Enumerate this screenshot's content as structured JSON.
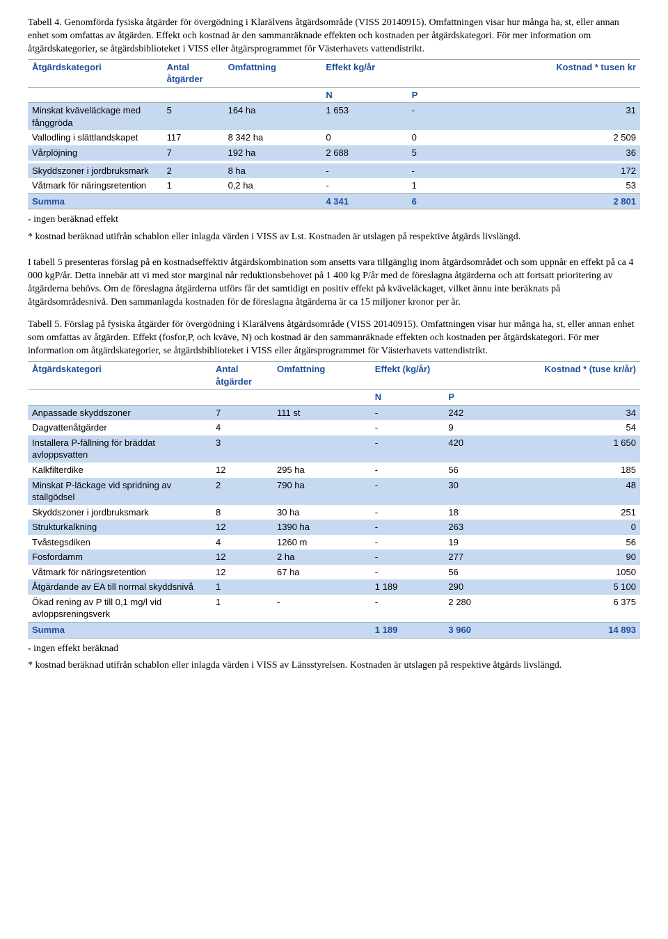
{
  "table4": {
    "caption": "Tabell 4. Genomförda fysiska åtgärder för övergödning i Klarälvens åtgärdsområde (VISS 20140915). Omfattningen visar hur många ha, st, eller annan enhet som omfattas av åtgärden. Effekt och kostnad är den sammanräknade effekten och kostnaden per åtgärdskategori. För mer information om åtgärdskategorier, se åtgärdsbiblioteket i VISS eller åtgärsprogrammet för Västerhavets vattendistrikt.",
    "headers": {
      "cat": "Åtgärdskategori",
      "antal": "Antal åtgärder",
      "omf": "Omfattning",
      "effekt": "Effekt kg/år",
      "n": "N",
      "p": "P",
      "kost": "Kostnad * tusen kr"
    },
    "rows": [
      {
        "cat": "Minskat kväveläckage med fånggröda",
        "antal": "5",
        "omf": "164 ha",
        "n": "1 653",
        "p": "-",
        "kost": "31",
        "blue": true
      },
      {
        "cat": "Vallodling i slättlandskapet",
        "antal": "117",
        "omf": "8 342 ha",
        "n": "0",
        "p": "0",
        "kost": "2 509",
        "blue": false
      },
      {
        "cat": "Vårplöjning",
        "antal": "7",
        "omf": "192 ha",
        "n": "2 688",
        "p": "5",
        "kost": "36",
        "blue": true
      },
      {
        "cat": "",
        "antal": "",
        "omf": "",
        "n": "",
        "p": "",
        "kost": "",
        "blue": false
      },
      {
        "cat": "Skyddszoner i jordbruksmark",
        "antal": "2",
        "omf": "8 ha",
        "n": "-",
        "p": "-",
        "kost": "172",
        "blue": true
      },
      {
        "cat": "Våtmark för näringsretention",
        "antal": "1",
        "omf": "0,2 ha",
        "n": "-",
        "p": "1",
        "kost": "53",
        "blue": false
      }
    ],
    "sum": {
      "label": "Summa",
      "n": "4 341",
      "p": "6",
      "kost": "2 801"
    },
    "notes": [
      "- ingen beräknad effekt",
      "* kostnad beräknad utifrån schablon eller inlagda värden i VISS av Lst. Kostnaden är utslagen på respektive åtgärds livslängd."
    ]
  },
  "midpara": "I tabell 5 presenteras förslag på en kostnadseffektiv åtgärdskombination som ansetts vara tillgänglig inom åtgärdsområdet och som uppnår en effekt på ca 4 000 kgP/år. Detta innebär att vi med stor marginal når reduktionsbehovet på 1 400 kg P/år med de föreslagna åtgärderna och att fortsatt prioritering av åtgärderna behövs. Om de föreslagna åtgärderna utförs får det samtidigt en positiv effekt på kväveläckaget, vilket ännu inte beräknats på åtgärdsområdesnivå. Den sammanlagda kostnaden för de föreslagna åtgärderna är ca 15 miljoner kronor per år.",
  "table5": {
    "caption": "Tabell 5. Förslag på fysiska åtgärder för övergödning i Klarälvens åtgärdsområde (VISS 20140915). Omfattningen visar hur många ha, st, eller annan enhet som omfattas av åtgärden. Effekt (fosfor,P, och kväve, N) och kostnad är den sammanräknade effekten och kostnaden per åtgärdskategori. För mer information om åtgärdskategorier, se åtgärdsbiblioteket i VISS eller åtgärsprogrammet för Västerhavets vattendistrikt.",
    "headers": {
      "cat": "Åtgärdskategori",
      "antal": "Antal åtgärder",
      "omf": "Omfattning",
      "effekt": "Effekt (kg/år)",
      "n": "N",
      "p": "P",
      "kost": "Kostnad * (tuse kr/år)"
    },
    "rows": [
      {
        "cat": "Anpassade skyddszoner",
        "antal": "7",
        "omf": "111 st",
        "n": "-",
        "p": "242",
        "kost": "34",
        "blue": true
      },
      {
        "cat": "Dagvattenåtgärder",
        "antal": "4",
        "omf": "",
        "n": "-",
        "p": "9",
        "kost": "54",
        "blue": false
      },
      {
        "cat": "Installera P-fällning för bräddat avloppsvatten",
        "antal": "3",
        "omf": "",
        "n": "-",
        "p": "420",
        "kost": "1 650",
        "blue": true
      },
      {
        "cat": "Kalkfilterdike",
        "antal": "12",
        "omf": "295 ha",
        "n": "-",
        "p": "56",
        "kost": "185",
        "blue": false
      },
      {
        "cat": "Minskat P-läckage vid spridning av stallgödsel",
        "antal": "2",
        "omf": "790 ha",
        "n": "-",
        "p": "30",
        "kost": "48",
        "blue": true
      },
      {
        "cat": "Skyddszoner i jordbruksmark",
        "antal": "8",
        "omf": "30 ha",
        "n": "-",
        "p": "18",
        "kost": "251",
        "blue": false
      },
      {
        "cat": "Strukturkalkning",
        "antal": "12",
        "omf": "1390 ha",
        "n": "-",
        "p": "263",
        "kost": "0",
        "blue": true
      },
      {
        "cat": "Tvåstegsdiken",
        "antal": "4",
        "omf": "1260 m",
        "n": "-",
        "p": "19",
        "kost": "56",
        "blue": false
      },
      {
        "cat": "Fosfordamm",
        "antal": "12",
        "omf": "2 ha",
        "n": "-",
        "p": "277",
        "kost": "90",
        "blue": true
      },
      {
        "cat": "Våtmark för näringsretention",
        "antal": "12",
        "omf": "67 ha",
        "n": "-",
        "p": "56",
        "kost": "1050",
        "blue": false
      },
      {
        "cat": "Åtgärdande av EA till normal skyddsnivå",
        "antal": "1",
        "omf": "",
        "n": "1 189",
        "p": "290",
        "kost": "5 100",
        "blue": true
      },
      {
        "cat": "Ökad rening av P till 0,1 mg/l vid avloppsreningsverk",
        "antal": "1",
        "omf": "-",
        "n": "-",
        "p": "2 280",
        "kost": "6 375",
        "blue": false
      }
    ],
    "sum": {
      "label": "Summa",
      "n": "1 189",
      "p": "3 960",
      "kost": "14 893"
    },
    "notes": [
      "- ingen effekt beräknad",
      "* kostnad beräknad utifrån schablon eller inlagda värden i VISS av Länsstyrelsen. Kostnaden är utslagen på respektive åtgärds livslängd."
    ]
  }
}
